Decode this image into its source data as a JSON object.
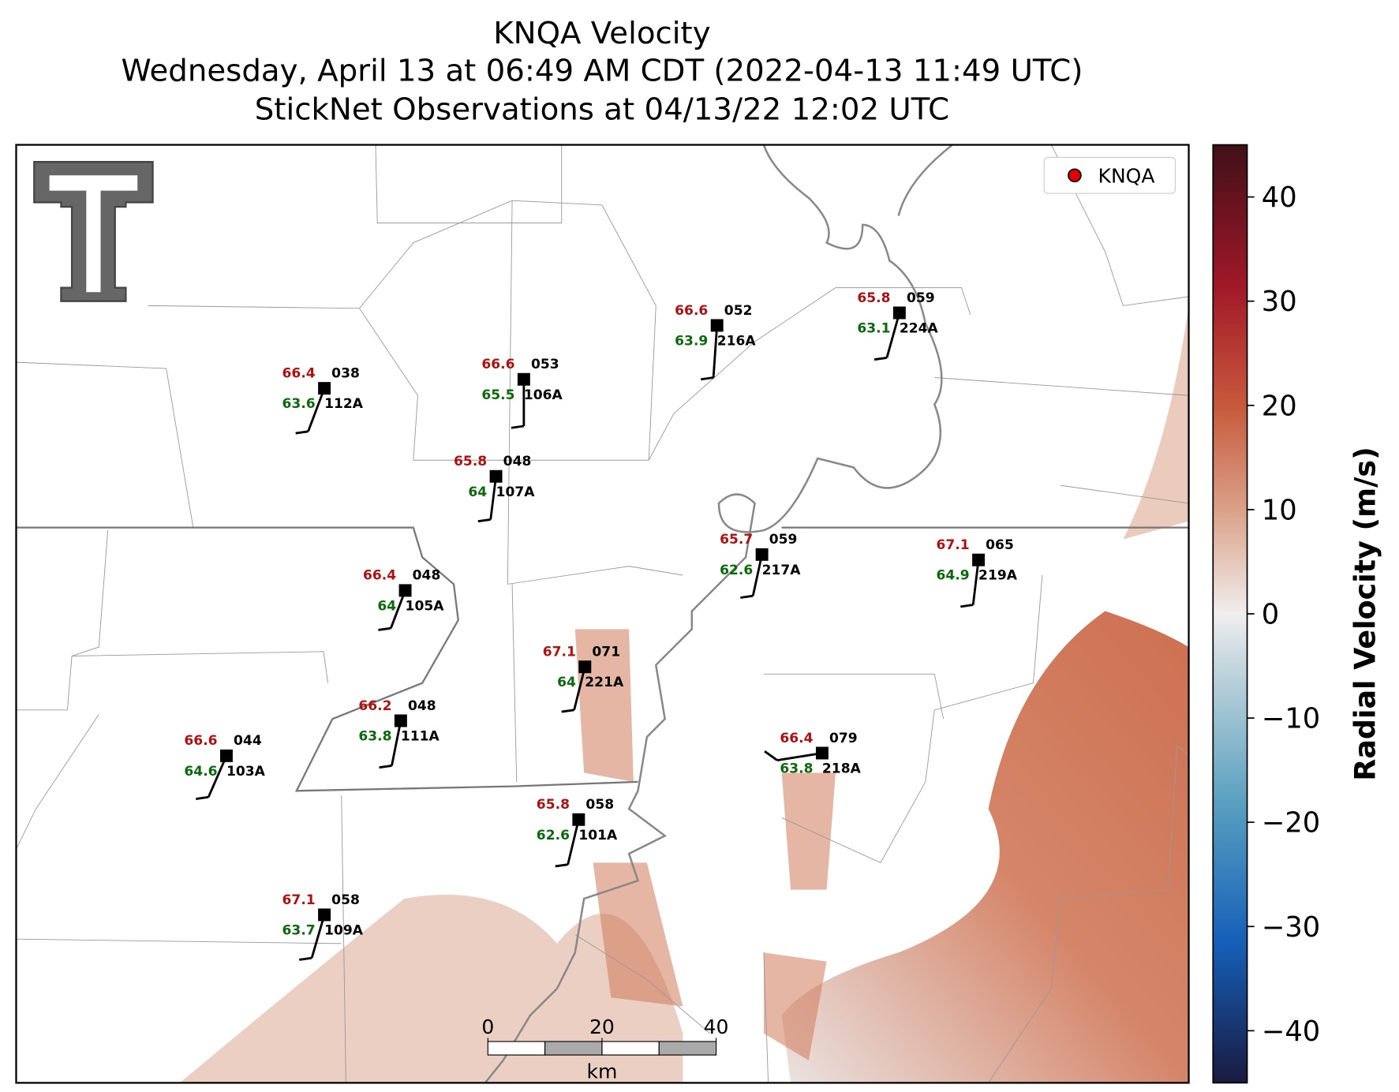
{
  "title": [
    "KNQA Velocity",
    "Wednesday, April 13 at 06:49 AM CDT (2022-04-13 11:49 UTC)",
    "StickNet Observations at 04/13/22 12:02 UTC"
  ],
  "legend": {
    "label": "KNQA",
    "color": "#e00000",
    "corner": "upper right"
  },
  "colorbar": {
    "label": "Radial Velocity (m/s)",
    "clim": [
      -45,
      45
    ],
    "ticks": [
      40,
      30,
      20,
      10,
      {
        "value": 0,
        "label": "0"
      },
      {
        "value": -10,
        "label": "−10"
      },
      {
        "value": -20,
        "label": "−20"
      },
      {
        "value": -30,
        "label": "−30"
      },
      {
        "value": -40,
        "label": "−40"
      }
    ]
  },
  "scale_bar": {
    "ticks": [
      0,
      20,
      40
    ],
    "unit": "km"
  },
  "stations": [
    {
      "temp": 66.4,
      "dew": 63.6,
      "code": "038",
      "id": "112A"
    },
    {
      "temp": 66.6,
      "dew": 65.5,
      "code": "053",
      "id": "106A"
    },
    {
      "temp": 66.6,
      "dew": 63.9,
      "code": "052",
      "id": "216A"
    },
    {
      "temp": 65.8,
      "dew": 63.1,
      "code": "059",
      "id": "224A"
    },
    {
      "temp": 65.8,
      "dew": 64.0,
      "code": "048",
      "id": "107A"
    },
    {
      "temp": 66.4,
      "dew": 64.0,
      "code": "048",
      "id": "105A"
    },
    {
      "temp": 65.7,
      "dew": 62.6,
      "code": "059",
      "id": "217A"
    },
    {
      "temp": 67.1,
      "dew": 64.9,
      "code": "065",
      "id": "219A"
    },
    {
      "temp": 67.1,
      "dew": 64.0,
      "code": "071",
      "id": "221A"
    },
    {
      "temp": 66.2,
      "dew": 63.8,
      "code": "048",
      "id": "111A"
    },
    {
      "temp": 66.6,
      "dew": 64.6,
      "code": "044",
      "id": "103A"
    },
    {
      "temp": 66.4,
      "dew": 63.8,
      "code": "079",
      "id": "218A"
    },
    {
      "temp": 65.8,
      "dew": 62.6,
      "code": "058",
      "id": "101A"
    },
    {
      "temp": 67.1,
      "dew": 63.7,
      "code": "058",
      "id": "109A"
    }
  ]
}
